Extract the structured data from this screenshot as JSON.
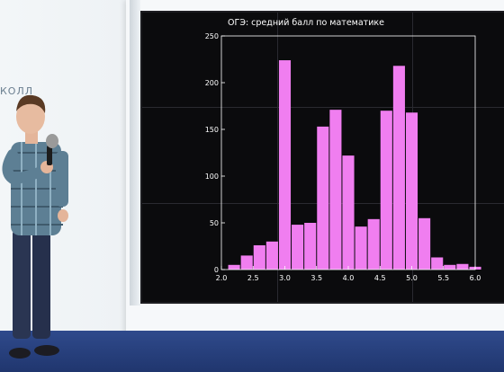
{
  "scene": {
    "wall_text": "КОЛЛ"
  },
  "colors": {
    "bar": "#f07ef0",
    "screen_bg": "#0b0b0d",
    "axis": "#ffffff",
    "floor": "#2f4a8c"
  },
  "chart_data": {
    "type": "bar",
    "title": "ОГЭ: средний балл по математике",
    "xlabel": "",
    "ylabel": "",
    "xlim": [
      2.0,
      6.0
    ],
    "ylim": [
      0,
      250
    ],
    "xticks": [
      "2.0",
      "2.5",
      "3.0",
      "3.5",
      "4.0",
      "4.5",
      "5.0",
      "5.5",
      "6.0"
    ],
    "yticks": [
      "0",
      "50",
      "100",
      "150",
      "200",
      "250"
    ],
    "bin_width": 0.2,
    "bins": [
      {
        "x0": 2.1,
        "value": 5
      },
      {
        "x0": 2.3,
        "value": 15
      },
      {
        "x0": 2.5,
        "value": 26
      },
      {
        "x0": 2.7,
        "value": 30
      },
      {
        "x0": 2.9,
        "value": 224
      },
      {
        "x0": 3.1,
        "value": 48
      },
      {
        "x0": 3.3,
        "value": 50
      },
      {
        "x0": 3.5,
        "value": 153
      },
      {
        "x0": 3.7,
        "value": 171
      },
      {
        "x0": 3.9,
        "value": 122
      },
      {
        "x0": 4.1,
        "value": 46
      },
      {
        "x0": 4.3,
        "value": 54
      },
      {
        "x0": 4.5,
        "value": 170
      },
      {
        "x0": 4.7,
        "value": 218
      },
      {
        "x0": 4.9,
        "value": 168
      },
      {
        "x0": 5.1,
        "value": 55
      },
      {
        "x0": 5.3,
        "value": 13
      },
      {
        "x0": 5.5,
        "value": 5
      },
      {
        "x0": 5.7,
        "value": 6
      },
      {
        "x0": 5.9,
        "value": 3
      }
    ],
    "grid": false,
    "legend": "none"
  }
}
